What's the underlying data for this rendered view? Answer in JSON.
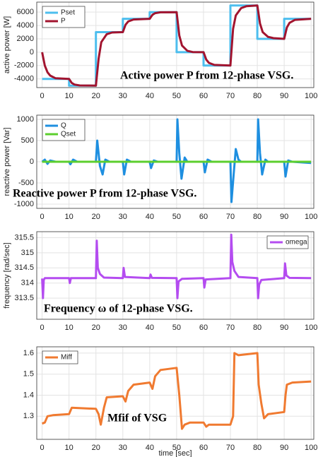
{
  "chart_data": [
    {
      "type": "line",
      "ylabel": "active power [W]",
      "annotation": "Active power P from 12-phase VSG.",
      "xlim": [
        -2,
        101
      ],
      "xticks": [
        0,
        10,
        20,
        30,
        40,
        50,
        60,
        70,
        80,
        90,
        100
      ],
      "ylim": [
        -5300,
        7500
      ],
      "yticks": [
        -4000,
        -2000,
        0,
        2000,
        4000,
        6000
      ],
      "grid": true,
      "legend": "upper left",
      "series": [
        {
          "name": "Pset",
          "color": "#4dbeee",
          "x": [
            0,
            10,
            10,
            20,
            20,
            30,
            30,
            40,
            40,
            50,
            50,
            60,
            60,
            70,
            70,
            80,
            80,
            90,
            90,
            100
          ],
          "values": [
            -4000,
            -4000,
            -5000,
            -5000,
            3000,
            3000,
            5000,
            5000,
            6000,
            6000,
            0,
            0,
            -2000,
            -2000,
            7000,
            7000,
            2000,
            2000,
            5000,
            5000
          ]
        },
        {
          "name": "P",
          "color": "#a2142f",
          "x": [
            0,
            1,
            2,
            3,
            5,
            10,
            11,
            12,
            14,
            20,
            21,
            22,
            24,
            26,
            30,
            31,
            32,
            34,
            40,
            41,
            42,
            44,
            50,
            51,
            52,
            54,
            56,
            60,
            61,
            62,
            64,
            70,
            71,
            72,
            74,
            76,
            80,
            81,
            82,
            84,
            86,
            90,
            91,
            92,
            94,
            100
          ],
          "values": [
            0,
            -2000,
            -3000,
            -3500,
            -3900,
            -4000,
            -4600,
            -4850,
            -4980,
            -5000,
            -1000,
            1500,
            2700,
            2950,
            3000,
            4100,
            4600,
            4900,
            5000,
            5600,
            5850,
            5980,
            6000,
            2500,
            1000,
            200,
            20,
            0,
            -1100,
            -1600,
            -1900,
            -2000,
            3500,
            5500,
            6600,
            6900,
            7000,
            4300,
            3000,
            2300,
            2100,
            2000,
            3700,
            4400,
            4850,
            5000
          ]
        }
      ]
    },
    {
      "type": "line",
      "ylabel": "reactive power [Var]",
      "annotation": "Reactive power P from 12-phase VSG.",
      "xlim": [
        -2,
        101
      ],
      "xticks": [
        0,
        10,
        20,
        30,
        40,
        50,
        60,
        70,
        80,
        90,
        100
      ],
      "ylim": [
        -1100,
        1100
      ],
      "yticks": [
        -1000,
        -500,
        0,
        500,
        1000
      ],
      "grid": true,
      "legend": "upper left",
      "series": [
        {
          "name": "Q",
          "color": "#1e8fe0",
          "x": [
            0,
            1,
            2,
            3,
            5,
            10,
            10.5,
            11.5,
            13,
            20,
            20.5,
            21.5,
            22.5,
            23.5,
            25,
            30,
            30.5,
            31.5,
            33,
            40,
            40.5,
            41.5,
            43,
            50,
            50.3,
            51,
            51.8,
            53,
            54,
            60,
            60.5,
            61.5,
            63,
            70,
            70.4,
            71.2,
            72,
            73,
            74,
            80,
            80.3,
            81,
            81.8,
            83,
            84,
            90,
            90.5,
            91.5,
            93,
            100
          ],
          "values": [
            0,
            50,
            -50,
            30,
            0,
            0,
            -60,
            50,
            0,
            0,
            500,
            -100,
            -300,
            50,
            0,
            0,
            -300,
            50,
            0,
            0,
            -150,
            30,
            0,
            0,
            1000,
            200,
            -400,
            100,
            0,
            0,
            -250,
            50,
            0,
            0,
            -950,
            -300,
            300,
            50,
            0,
            0,
            1000,
            200,
            -300,
            50,
            0,
            0,
            -350,
            30,
            0,
            -30
          ]
        },
        {
          "name": "Qset",
          "color": "#5ccf2e",
          "x": [
            0,
            100
          ],
          "values": [
            0,
            0
          ]
        }
      ]
    },
    {
      "type": "line",
      "ylabel": "frequency [rad/sec]",
      "annotation": "Frequency ω of 12-phase VSG.",
      "xlim": [
        -2,
        101
      ],
      "xticks": [
        0,
        10,
        20,
        30,
        40,
        50,
        60,
        70,
        80,
        90,
        100
      ],
      "ylim": [
        312.8,
        315.7
      ],
      "yticks": [
        313.5,
        314,
        314.5,
        315,
        315.5
      ],
      "grid": true,
      "legend": "upper right",
      "series": [
        {
          "name": "omega",
          "color": "#b44cf0",
          "x": [
            0,
            0.3,
            0.6,
            1,
            10,
            10.3,
            10.7,
            20,
            20.3,
            20.7,
            21.5,
            23,
            30,
            30.3,
            30.8,
            40,
            40.3,
            40.8,
            50,
            50.3,
            50.7,
            52,
            60,
            60.3,
            60.8,
            70,
            70.3,
            70.7,
            71.5,
            73,
            80,
            80.3,
            80.7,
            81.5,
            90,
            90.3,
            90.8,
            92,
            100
          ],
          "values": [
            314.15,
            313.5,
            314.1,
            314.16,
            314.16,
            314.0,
            314.16,
            314.16,
            315.4,
            314.5,
            314.3,
            314.18,
            314.16,
            314.5,
            314.2,
            314.16,
            314.28,
            314.17,
            314.16,
            313.5,
            314.05,
            314.14,
            314.16,
            313.85,
            314.12,
            314.16,
            315.6,
            314.7,
            314.4,
            314.2,
            314.16,
            313.5,
            313.95,
            314.1,
            314.16,
            314.65,
            314.25,
            314.17,
            314.16
          ]
        }
      ]
    },
    {
      "type": "line",
      "xlabel": "time [sec]",
      "annotation": "Mfif of VSG",
      "xlim": [
        -2,
        101
      ],
      "xticks": [
        0,
        10,
        20,
        30,
        40,
        50,
        60,
        70,
        80,
        90,
        100
      ],
      "ylim": [
        1.19,
        1.63
      ],
      "yticks": [
        1.3,
        1.4,
        1.5,
        1.6
      ],
      "grid": true,
      "legend": "upper left",
      "series": [
        {
          "name": "Miff",
          "color": "#f07a30",
          "x": [
            0,
            1,
            2,
            4,
            10,
            11,
            20,
            21,
            21.8,
            23,
            24,
            30,
            31,
            32,
            34,
            40,
            41,
            42,
            44,
            50,
            51,
            52,
            53,
            55,
            60,
            61,
            62,
            64,
            70,
            71,
            71.5,
            73,
            80,
            80.5,
            81.5,
            82.5,
            84,
            90,
            90.5,
            91,
            93,
            100
          ],
          "values": [
            1.265,
            1.27,
            1.3,
            1.305,
            1.31,
            1.34,
            1.335,
            1.31,
            1.26,
            1.34,
            1.39,
            1.395,
            1.37,
            1.42,
            1.45,
            1.46,
            1.43,
            1.49,
            1.52,
            1.53,
            1.4,
            1.24,
            1.26,
            1.27,
            1.27,
            1.25,
            1.26,
            1.26,
            1.26,
            1.3,
            1.6,
            1.59,
            1.6,
            1.45,
            1.36,
            1.29,
            1.31,
            1.32,
            1.4,
            1.45,
            1.46,
            1.465
          ]
        }
      ]
    }
  ]
}
